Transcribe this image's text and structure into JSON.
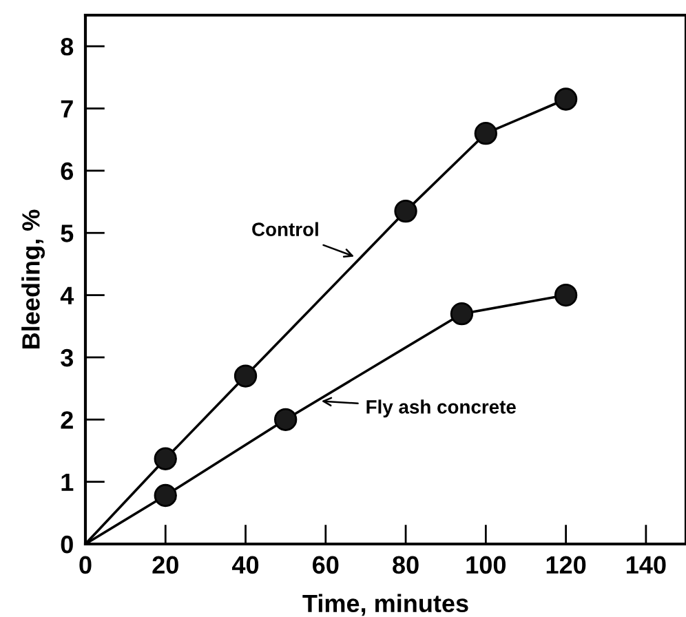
{
  "chart_data": {
    "type": "line",
    "xlabel": "Time, minutes",
    "ylabel": "Bleeding, %",
    "xlim": [
      0,
      150
    ],
    "ylim": [
      0,
      8.5
    ],
    "xticks": [
      0,
      20,
      40,
      60,
      80,
      100,
      120,
      140
    ],
    "yticks": [
      0,
      1,
      2,
      3,
      4,
      5,
      6,
      7,
      8
    ],
    "grid": false,
    "legend": false,
    "marker": "circle",
    "line_style": "solid",
    "series": [
      {
        "color": "#000000",
        "x": [
          0,
          20,
          40,
          80,
          100,
          120
        ],
        "values": [
          0,
          1.37,
          2.7,
          5.35,
          6.6,
          7.15
        ]
      },
      {
        "color": "#000000",
        "x": [
          0,
          20,
          50,
          94,
          120
        ],
        "values": [
          0,
          0.78,
          2.0,
          3.7,
          4.0
        ]
      }
    ],
    "annotations": [
      {
        "text": "Control",
        "x": 68,
        "y": 4.6
      },
      {
        "text": "Fly ash concrete",
        "x": 58,
        "y": 2.3
      }
    ]
  }
}
